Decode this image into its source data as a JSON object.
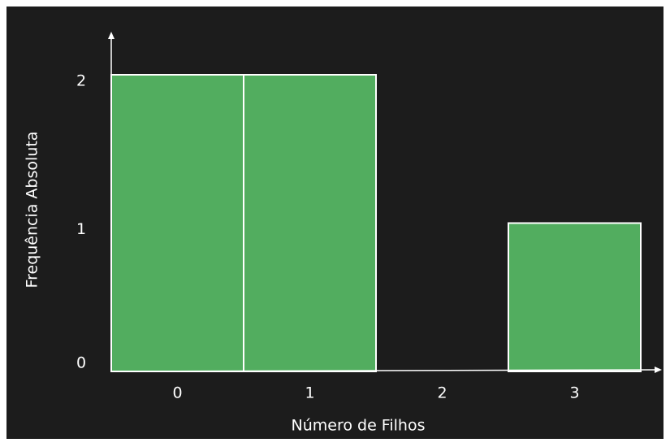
{
  "chart_data": {
    "type": "bar",
    "categories": [
      "0",
      "1",
      "2",
      "3"
    ],
    "values": [
      2,
      2,
      0,
      1
    ],
    "color": "#52ad5f",
    "xlabel": "Número de Filhos",
    "ylabel": "Frequência Absoluta",
    "ylim": [
      0,
      2
    ],
    "yticks": [
      0,
      1,
      2
    ],
    "grid": false
  }
}
